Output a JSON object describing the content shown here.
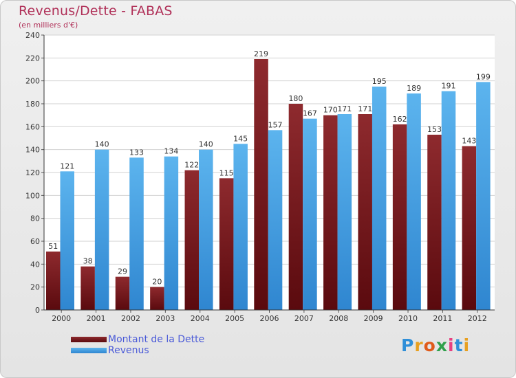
{
  "header": {
    "title": "Revenus/Dette - FABAS",
    "subtitle": "(en milliers d'€)"
  },
  "chart_data": {
    "type": "bar",
    "categories": [
      "2000",
      "2001",
      "2002",
      "2003",
      "2004",
      "2005",
      "2006",
      "2007",
      "2008",
      "2009",
      "2010",
      "2011",
      "2012"
    ],
    "series": [
      {
        "name": "Montant de la Dette",
        "values": [
          51,
          38,
          29,
          20,
          122,
          115,
          219,
          180,
          170,
          171,
          162,
          153,
          143
        ],
        "color": "#7a1a1e"
      },
      {
        "name": "Revenus",
        "values": [
          121,
          140,
          133,
          134,
          140,
          145,
          157,
          167,
          171,
          195,
          189,
          191,
          199
        ],
        "color": "#4ea8e8"
      }
    ],
    "ylim": [
      0,
      240
    ],
    "yticks": [
      0,
      20,
      40,
      60,
      80,
      100,
      120,
      140,
      160,
      180,
      200,
      220,
      240
    ],
    "grid": true,
    "legend_position": "bottom-left"
  },
  "legend": {
    "items": [
      {
        "label": "Montant de la Dette",
        "color": "#7a1a1e"
      },
      {
        "label": "Revenus",
        "color": "#4ea8e8"
      }
    ]
  },
  "logo": {
    "text": "Proxiti",
    "letter_colors": [
      "#2f8fd8",
      "#e8a020",
      "#e05a1a",
      "#2fa04a",
      "#e84080",
      "#2f8fd8",
      "#e8a020"
    ]
  }
}
